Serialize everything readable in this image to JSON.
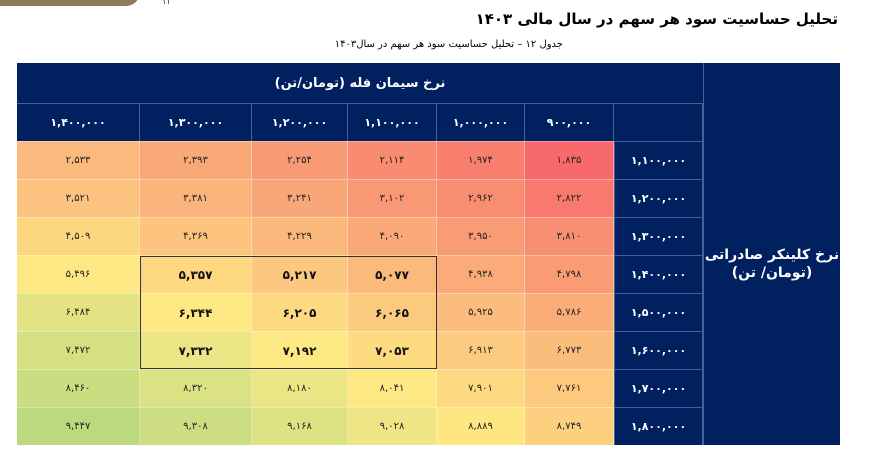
{
  "header": {
    "title": "تحلیل حساسیت سود هر سهم در سال مالی ۱۴۰۳",
    "caption": "جدول ۱۲ – تحلیل حساسیت سود هر سهم در سال۱۴۰۳",
    "top_mark": "۱۱"
  },
  "table": {
    "column_group_title": "نرخ سیمان فله (تومان/تن)",
    "row_group_title_line1": "نرخ کلینکر صادراتی",
    "row_group_title_line2": "(تومان/ تن)",
    "columns": [
      "۱,۴۰۰,۰۰۰",
      "۱,۳۰۰,۰۰۰",
      "۱,۲۰۰,۰۰۰",
      "۱,۱۰۰,۰۰۰",
      "۱,۰۰۰,۰۰۰",
      "۹۰۰,۰۰۰"
    ],
    "rows": [
      {
        "label": "۱,۱۰۰,۰۰۰",
        "values": [
          "۲,۵۳۳",
          "۲,۳۹۳",
          "۲,۲۵۴",
          "۲,۱۱۴",
          "۱,۹۷۴",
          "۱,۸۳۵"
        ]
      },
      {
        "label": "۱,۲۰۰,۰۰۰",
        "values": [
          "۳,۵۲۱",
          "۳,۳۸۱",
          "۳,۲۴۱",
          "۳,۱۰۲",
          "۲,۹۶۲",
          "۲,۸۲۲"
        ]
      },
      {
        "label": "۱,۳۰۰,۰۰۰",
        "values": [
          "۴,۵۰۹",
          "۴,۳۶۹",
          "۴,۲۲۹",
          "۴,۰۹۰",
          "۳,۹۵۰",
          "۳,۸۱۰"
        ]
      },
      {
        "label": "۱,۴۰۰,۰۰۰",
        "values": [
          "۵,۴۹۶",
          "۵,۳۵۷",
          "۵,۲۱۷",
          "۵,۰۷۷",
          "۴,۹۳۸",
          "۴,۷۹۸"
        ]
      },
      {
        "label": "۱,۵۰۰,۰۰۰",
        "values": [
          "۶,۴۸۴",
          "۶,۳۴۴",
          "۶,۲۰۵",
          "۶,۰۶۵",
          "۵,۹۲۵",
          "۵,۷۸۶"
        ]
      },
      {
        "label": "۱,۶۰۰,۰۰۰",
        "values": [
          "۷,۴۷۲",
          "۷,۳۳۲",
          "۷,۱۹۲",
          "۷,۰۵۳",
          "۶,۹۱۳",
          "۶,۷۷۳"
        ]
      },
      {
        "label": "۱,۷۰۰,۰۰۰",
        "values": [
          "۸,۴۶۰",
          "۸,۳۲۰",
          "۸,۱۸۰",
          "۸,۰۴۱",
          "۷,۹۰۱",
          "۷,۷۶۱"
        ]
      },
      {
        "label": "۱,۸۰۰,۰۰۰",
        "values": [
          "۹,۴۴۷",
          "۹,۳۰۸",
          "۹,۱۶۸",
          "۹,۰۲۸",
          "۸,۸۸۹",
          "۸,۷۴۹"
        ]
      }
    ],
    "colors": [
      [
        "#fbb97e",
        "#f9a878",
        "#f89a74",
        "#f88b70",
        "#f87f6e",
        "#f8696b"
      ],
      [
        "#fbc37f",
        "#fab47c",
        "#f9a778",
        "#f89875",
        "#f88d71",
        "#f8796d"
      ],
      [
        "#fdd680",
        "#fcc47f",
        "#fab87c",
        "#f9a978",
        "#f99c75",
        "#f88e71"
      ],
      [
        "#fee883",
        "#fdd881",
        "#fcc87f",
        "#fbb97c",
        "#faab79",
        "#f99c76"
      ],
      [
        "#e3e383",
        "#fde883",
        "#fdd981",
        "#fcca7f",
        "#fbbc7d",
        "#faad79"
      ],
      [
        "#d5e082",
        "#ece586",
        "#fde984",
        "#fddb81",
        "#fccb7f",
        "#fbbd7c"
      ],
      [
        "#c9dd81",
        "#dbe283",
        "#ebe585",
        "#fde884",
        "#fdd981",
        "#fcc97e"
      ],
      [
        "#bcd980",
        "#ccde81",
        "#dde283",
        "#eee685",
        "#fee683",
        "#fcd07f"
      ]
    ],
    "highlighted_range": {
      "rows": [
        3,
        5
      ],
      "cols": [
        1,
        3
      ]
    }
  }
}
